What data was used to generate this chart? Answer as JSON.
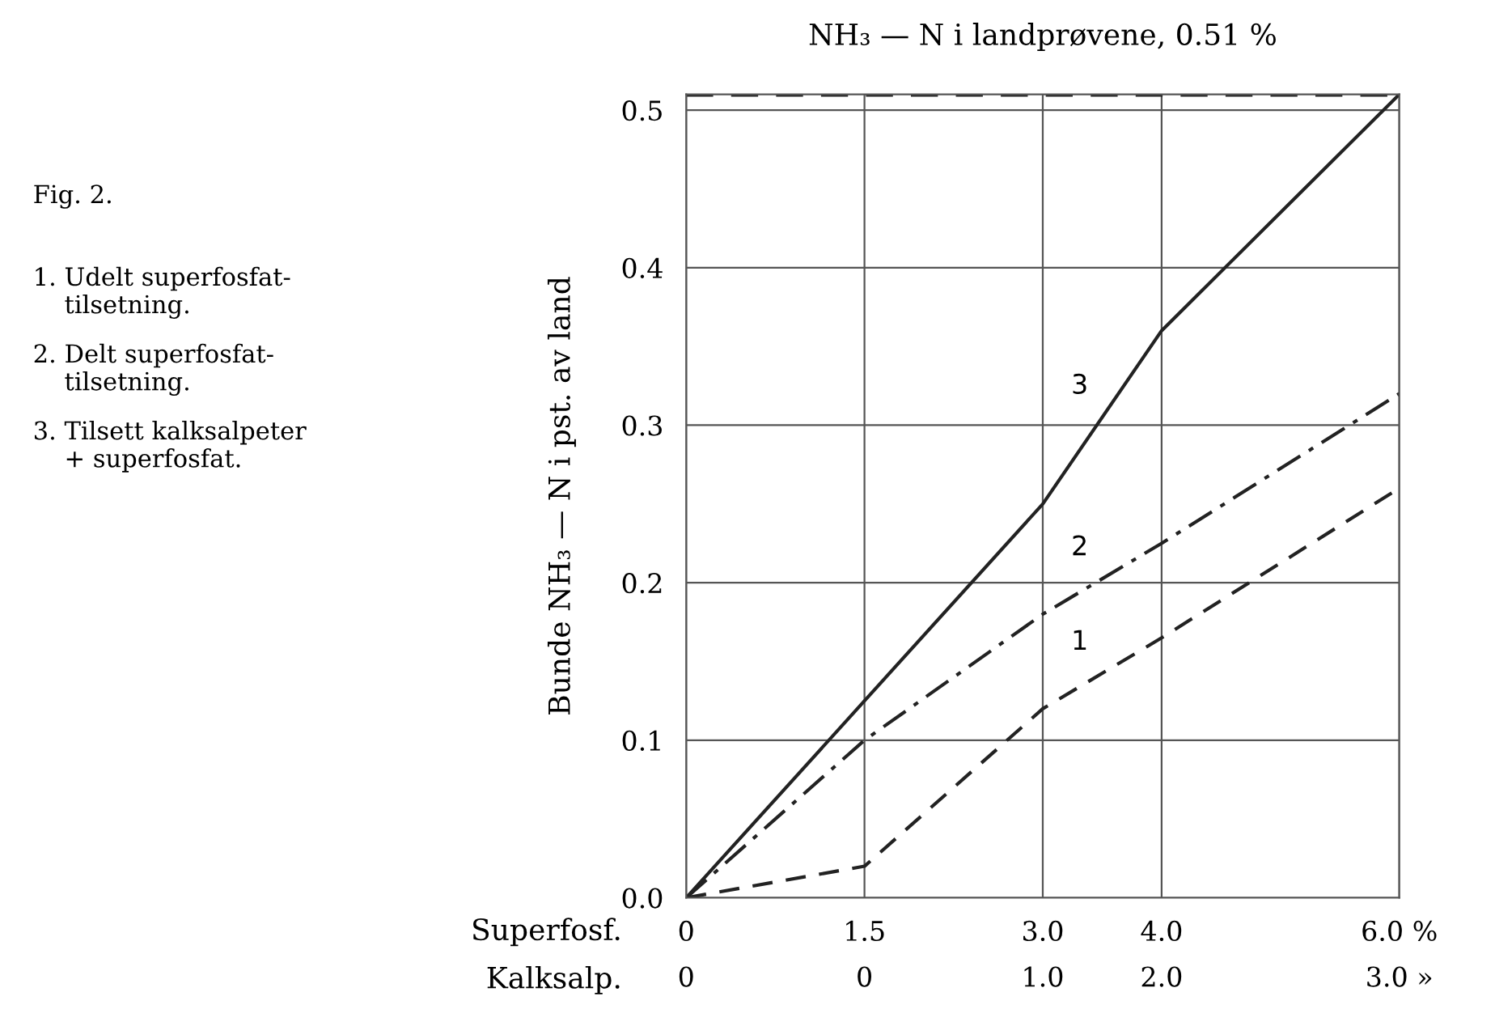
{
  "chart_data": {
    "type": "line",
    "title": "NH₃ — N i landprøvene, 0.51 %",
    "ylabel": "Bunde NH₃ — N i pst. av land",
    "xlabel": "Superfosf.",
    "x": [
      0,
      1.5,
      3.0,
      4.0,
      6.0
    ],
    "series": [
      {
        "name": "1",
        "color": "#222222",
        "line_style": "dashed",
        "values": [
          0,
          0.02,
          0.12,
          0.165,
          0.26
        ]
      },
      {
        "name": "2",
        "color": "#222222",
        "line_style": "dashdot",
        "values": [
          0,
          0.1,
          0.18,
          0.225,
          0.32
        ]
      },
      {
        "name": "3",
        "color": "#222222",
        "line_style": "solid",
        "values": [
          0,
          0.125,
          0.25,
          0.36,
          0.51
        ]
      }
    ],
    "xlim": [
      0,
      6.0
    ],
    "xticks": [
      0,
      1.5,
      {
        "value": 3.0,
        "label": "3.0"
      },
      {
        "value": 4.0,
        "label": "4.0"
      },
      {
        "value": 6.0,
        "label": "6.0 %"
      }
    ],
    "ylim": [
      0,
      0.51
    ],
    "yticks": [
      {
        "value": 0,
        "label": "0.0"
      },
      0.1,
      0.2,
      0.3,
      0.4,
      0.5
    ],
    "ref_lines": [
      {
        "axis": "y",
        "value": 0.51,
        "color": "#222222",
        "line_style": "dashed"
      }
    ],
    "grid": true,
    "legend": false,
    "marker": "none",
    "annotations": [
      "Fig. 2.",
      "1. Udelt superfosfat-\n    tilsetning.",
      "2. Delt superfosfat-\n    tilsetning.",
      "3. Tilsett kalksalpeter\n    + superfosfat.",
      "Kalksalp.",
      "0",
      "0",
      "1.0",
      "2.0",
      "3.0 »"
    ]
  }
}
